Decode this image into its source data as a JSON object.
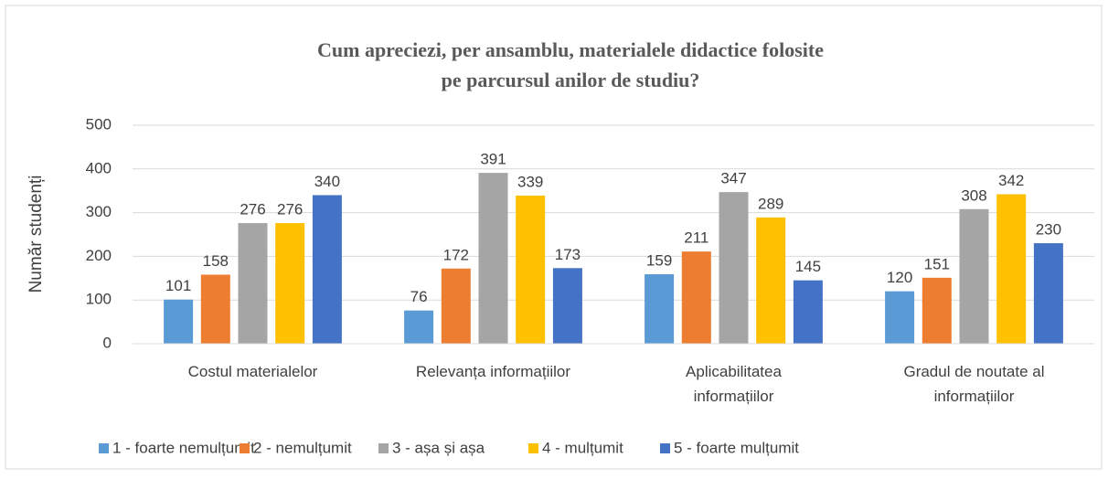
{
  "chart_data": {
    "type": "bar",
    "title": "Cum apreciezi, per ansamblu, materialele didactice folosite pe parcursul anilor de studiu?",
    "y_label": "Număr studenți",
    "categories": [
      "Costul materialelor",
      "Relevanța informațiilor",
      "Aplicabilitatea informațiilor",
      "Gradul de noutate al informațiilor"
    ],
    "series": [
      {
        "name": "1 - foarte nemulțumit",
        "color": "#5b9bd5",
        "values": [
          101,
          76,
          159,
          120
        ]
      },
      {
        "name": "2 - nemulțumit",
        "color": "#ed7d31",
        "values": [
          158,
          172,
          211,
          151
        ]
      },
      {
        "name": "3 - așa și așa",
        "color": "#a5a5a5",
        "values": [
          276,
          391,
          347,
          308
        ]
      },
      {
        "name": "4 - mulțumit",
        "color": "#ffc000",
        "values": [
          276,
          339,
          289,
          342
        ]
      },
      {
        "name": "5 - foarte mulțumit",
        "color": "#4472c4",
        "values": [
          340,
          173,
          145,
          230
        ]
      }
    ],
    "ylim": [
      0,
      500
    ],
    "yticks": [
      0,
      100,
      200,
      300,
      400,
      500
    ],
    "grid": true,
    "legend": "bottom"
  }
}
